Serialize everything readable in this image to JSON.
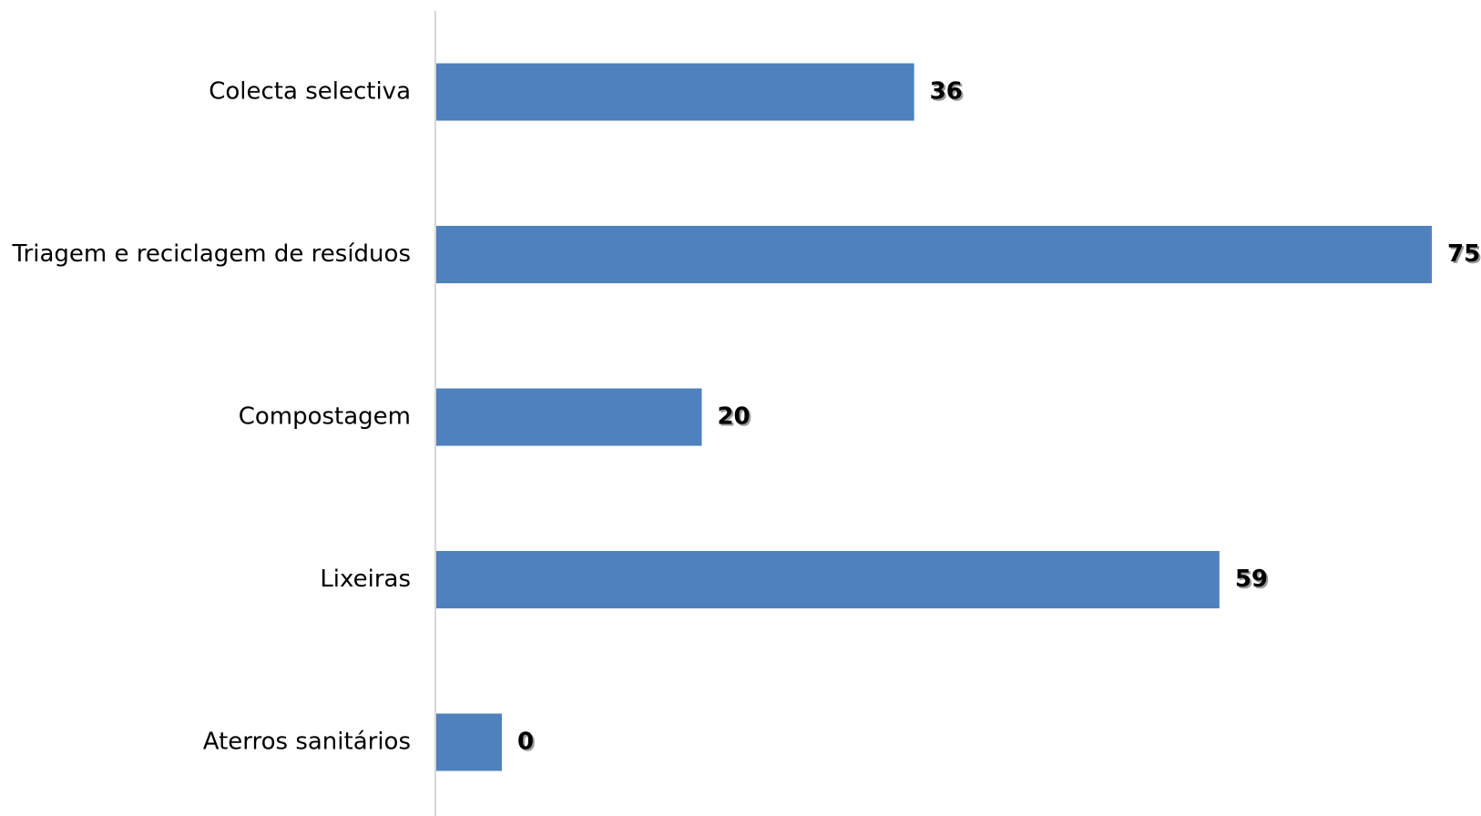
{
  "chart_data": {
    "type": "bar",
    "orientation": "horizontal",
    "categories": [
      "Colecta selectiva",
      "Triagem e reciclagem de resíduos",
      "Compostagem",
      "Lixeiras",
      "Aterros sanitários"
    ],
    "values": [
      36,
      75,
      20,
      59,
      0
    ],
    "value_labels": [
      "36",
      "75",
      "20",
      "59",
      "0"
    ],
    "title": "",
    "xlabel": "",
    "ylabel": "",
    "grid": false,
    "legend": "none",
    "colors": {
      "bar": "#4f81bd",
      "axis": "#c8c8c8",
      "text": "#000000"
    }
  }
}
